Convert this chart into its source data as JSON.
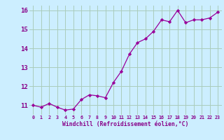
{
  "x": [
    0,
    1,
    2,
    3,
    4,
    5,
    6,
    7,
    8,
    9,
    10,
    11,
    12,
    13,
    14,
    15,
    16,
    17,
    18,
    19,
    20,
    21,
    22,
    23
  ],
  "y": [
    11.0,
    10.9,
    11.1,
    10.9,
    10.75,
    10.8,
    11.3,
    11.55,
    11.5,
    11.4,
    12.2,
    12.8,
    13.7,
    14.3,
    14.5,
    14.9,
    15.5,
    15.4,
    16.0,
    15.35,
    15.5,
    15.5,
    15.6,
    15.9
  ],
  "line_color": "#990099",
  "marker": "D",
  "marker_size": 2.2,
  "bg_color": "#cceeff",
  "grid_color": "#aaccbb",
  "xlabel": "Windchill (Refroidissement éolien,°C)",
  "xlabel_color": "#880088",
  "tick_color": "#880088",
  "ylim": [
    10.5,
    16.25
  ],
  "xlim": [
    -0.5,
    23.5
  ],
  "yticks": [
    11,
    12,
    13,
    14,
    15,
    16
  ],
  "xticks": [
    0,
    1,
    2,
    3,
    4,
    5,
    6,
    7,
    8,
    9,
    10,
    11,
    12,
    13,
    14,
    15,
    16,
    17,
    18,
    19,
    20,
    21,
    22,
    23
  ]
}
